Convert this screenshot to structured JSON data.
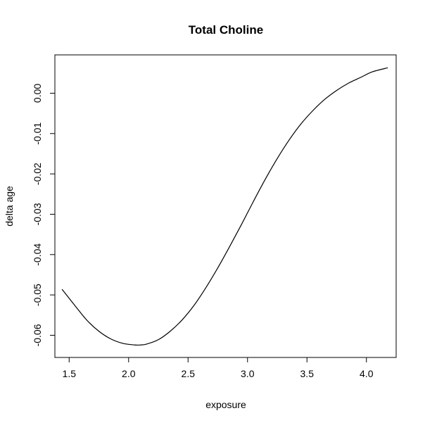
{
  "chart_data": {
    "type": "line",
    "title": "Total Choline",
    "xlabel": "exposure",
    "ylabel": "delta age",
    "xlim": [
      1.38,
      4.25
    ],
    "ylim": [
      -0.0655,
      0.0095
    ],
    "xticks": [
      1.5,
      2.0,
      2.5,
      3.0,
      3.5,
      4.0
    ],
    "xtick_labels": [
      "1.5",
      "2.0",
      "2.5",
      "3.0",
      "3.5",
      "4.0"
    ],
    "yticks": [
      0.0,
      -0.01,
      -0.02,
      -0.03,
      -0.04,
      -0.05,
      -0.06
    ],
    "ytick_labels": [
      "0.00",
      "-0.01",
      "-0.02",
      "-0.03",
      "-0.04",
      "-0.05",
      "-0.06"
    ],
    "grid": false,
    "legend": "none",
    "series": [
      {
        "color": "#000000",
        "x": [
          1.44,
          1.55,
          1.65,
          1.75,
          1.85,
          1.95,
          2.05,
          2.1,
          2.15,
          2.25,
          2.35,
          2.45,
          2.55,
          2.65,
          2.75,
          2.85,
          2.95,
          3.05,
          3.15,
          3.25,
          3.35,
          3.45,
          3.55,
          3.65,
          3.75,
          3.85,
          3.95,
          4.05,
          4.18
        ],
        "y": [
          -0.0486,
          -0.0527,
          -0.0563,
          -0.059,
          -0.0609,
          -0.062,
          -0.0624,
          -0.0624,
          -0.0622,
          -0.0611,
          -0.059,
          -0.0562,
          -0.0526,
          -0.0482,
          -0.0433,
          -0.038,
          -0.0325,
          -0.0268,
          -0.0213,
          -0.0162,
          -0.0116,
          -0.0076,
          -0.0043,
          -0.0015,
          0.0007,
          0.0025,
          0.0039,
          0.0053,
          0.0063
        ]
      }
    ]
  }
}
